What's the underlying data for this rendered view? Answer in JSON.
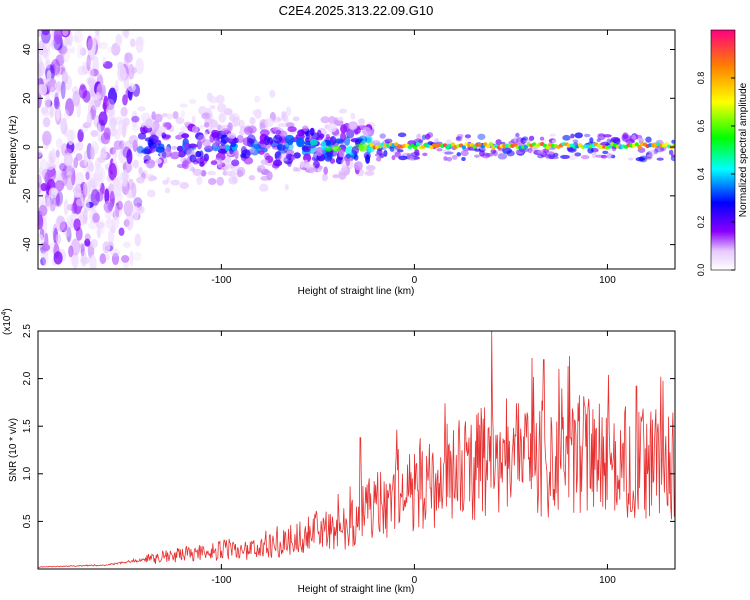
{
  "title": "C2E4.2025.313.22.09.G10",
  "chart_data": [
    {
      "type": "heatmap",
      "name": "spectrogram",
      "xlabel": "Height of straight line (km)",
      "ylabel": "Frequency (Hz)",
      "xlim": [
        -195,
        135
      ],
      "ylim": [
        -50,
        48
      ],
      "xticks": [
        -100,
        0,
        100
      ],
      "xtick_labels": [
        "-100",
        "0",
        "100"
      ],
      "yticks": [
        -40,
        -20,
        0,
        20,
        40
      ],
      "ytick_labels": [
        "-40",
        "-20",
        "0",
        "20",
        "40"
      ],
      "colorbar": {
        "label": "Normalized spectral amplitude",
        "range": [
          0,
          1
        ],
        "ticks": [
          0.0,
          0.2,
          0.4,
          0.6,
          0.8
        ],
        "tick_labels": [
          "0.0",
          "0.2",
          "0.4",
          "0.6",
          "0.8"
        ]
      },
      "regions": [
        {
          "x": [
            -195,
            -142
          ],
          "freq_spread": 48,
          "amplitude": 0.15,
          "description": "broadband noise"
        },
        {
          "x": [
            -142,
            -65
          ],
          "freq_spread": 8,
          "amplitude": 0.3
        },
        {
          "x": [
            -65,
            -22
          ],
          "freq_spread": 5,
          "amplitude": 0.5
        },
        {
          "x": [
            -22,
            135
          ],
          "freq_spread": 2,
          "amplitude": 0.95,
          "description": "narrow carrier line near 0 Hz"
        }
      ]
    },
    {
      "type": "line",
      "name": "snr",
      "xlabel": "Height of straight line (km)",
      "ylabel": "SNR (10 * v/v)",
      "exponent_label": "(x10",
      "exponent_power": "4",
      "exponent_close": ")",
      "xlim": [
        -195,
        135
      ],
      "ylim": [
        0,
        2.5
      ],
      "xticks": [
        -100,
        0,
        100
      ],
      "xtick_labels": [
        "-100",
        "0",
        "100"
      ],
      "yticks": [
        0.5,
        1.0,
        1.5,
        2.0,
        2.5
      ],
      "ytick_labels": [
        "0.5",
        "1.0",
        "1.5",
        "2.0",
        "2.5"
      ],
      "color": "#e83030",
      "x": [
        -195,
        -180,
        -160,
        -140,
        -120,
        -100,
        -80,
        -65,
        -55,
        -45,
        -35,
        -25,
        -15,
        -5,
        5,
        15,
        25,
        35,
        45,
        55,
        65,
        75,
        85,
        95,
        105,
        115,
        125,
        135
      ],
      "values": [
        0.02,
        0.03,
        0.04,
        0.1,
        0.15,
        0.2,
        0.2,
        0.3,
        0.4,
        0.4,
        0.45,
        0.6,
        0.7,
        0.8,
        0.9,
        1.0,
        1.05,
        1.1,
        1.15,
        1.2,
        1.2,
        1.2,
        1.2,
        1.15,
        1.15,
        1.1,
        1.1,
        1.15
      ],
      "peaks": [
        {
          "x": -55,
          "value": 0.55
        },
        {
          "x": -28,
          "value": 1.38
        },
        {
          "x": 40,
          "value": 2.5
        },
        {
          "x": 67,
          "value": 2.2
        },
        {
          "x": 115,
          "value": 1.92
        }
      ]
    }
  ]
}
